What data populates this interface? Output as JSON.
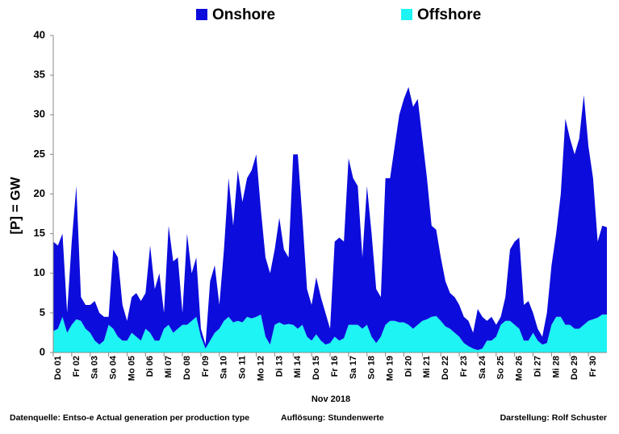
{
  "chart_data": {
    "type": "stacked_area",
    "y_label": "[P] = GW",
    "x_label": "Nov 2018",
    "footer": [
      "Datenquelle: Entso-e  Actual generation per production type",
      "Auflösung: Stundenwerte",
      "Darstellung:  Rolf Schuster"
    ],
    "legend": "top",
    "grid": false,
    "ylim": [
      0,
      40
    ],
    "yticks": [
      0,
      5,
      10,
      15,
      20,
      25,
      30,
      35,
      40
    ],
    "xlim": [
      0,
      30
    ],
    "xticks": [
      {
        "value": 0,
        "label": "Do 01"
      },
      {
        "value": 1,
        "label": "Fr 02"
      },
      {
        "value": 2,
        "label": "Sa 03"
      },
      {
        "value": 3,
        "label": "So 04"
      },
      {
        "value": 4,
        "label": "Mo 05"
      },
      {
        "value": 5,
        "label": "Di 06"
      },
      {
        "value": 6,
        "label": "Mi 07"
      },
      {
        "value": 7,
        "label": "Do 08"
      },
      {
        "value": 8,
        "label": "Fr 09"
      },
      {
        "value": 9,
        "label": "Sa 10"
      },
      {
        "value": 10,
        "label": "So 11"
      },
      {
        "value": 11,
        "label": "Mo 12"
      },
      {
        "value": 12,
        "label": "Di 13"
      },
      {
        "value": 13,
        "label": "Mi 14"
      },
      {
        "value": 14,
        "label": "Do 15"
      },
      {
        "value": 15,
        "label": "Fr 16"
      },
      {
        "value": 16,
        "label": "Sa 17"
      },
      {
        "value": 17,
        "label": "So 18"
      },
      {
        "value": 18,
        "label": "Mo 19"
      },
      {
        "value": 19,
        "label": "Di 20"
      },
      {
        "value": 20,
        "label": "Mi 21"
      },
      {
        "value": 21,
        "label": "Do 22"
      },
      {
        "value": 22,
        "label": "Fr 23"
      },
      {
        "value": 23,
        "label": "Sa 24"
      },
      {
        "value": 24,
        "label": "So 25"
      },
      {
        "value": 25,
        "label": "Mo 26"
      },
      {
        "value": 26,
        "label": "Di 27"
      },
      {
        "value": 27,
        "label": "Mi 28"
      },
      {
        "value": 28,
        "label": "Do 29"
      },
      {
        "value": 29,
        "label": "Fr 30"
      }
    ],
    "x": [
      0,
      0.25,
      0.5,
      0.75,
      1,
      1.25,
      1.5,
      1.75,
      2,
      2.25,
      2.5,
      2.75,
      3,
      3.25,
      3.5,
      3.75,
      4,
      4.25,
      4.5,
      4.75,
      5,
      5.25,
      5.5,
      5.75,
      6,
      6.25,
      6.5,
      6.75,
      7,
      7.25,
      7.5,
      7.75,
      8,
      8.25,
      8.5,
      8.75,
      9,
      9.25,
      9.5,
      9.75,
      10,
      10.25,
      10.5,
      10.75,
      11,
      11.25,
      11.5,
      11.75,
      12,
      12.25,
      12.5,
      12.75,
      13,
      13.25,
      13.5,
      13.75,
      14,
      14.25,
      14.5,
      14.75,
      15,
      15.25,
      15.5,
      15.75,
      16,
      16.25,
      16.5,
      16.75,
      17,
      17.25,
      17.5,
      17.75,
      18,
      18.25,
      18.5,
      18.75,
      19,
      19.25,
      19.5,
      19.75,
      20,
      20.25,
      20.5,
      20.75,
      21,
      21.25,
      21.5,
      21.75,
      22,
      22.25,
      22.5,
      22.75,
      23,
      23.25,
      23.5,
      23.75,
      24,
      24.25,
      24.5,
      24.75,
      25,
      25.25,
      25.5,
      25.75,
      26,
      26.25,
      26.5,
      26.75,
      27,
      27.25,
      27.5,
      27.75,
      28,
      28.25,
      28.5,
      28.75,
      29,
      29.25,
      29.5,
      29.75,
      30
    ],
    "series": [
      {
        "name": "Onshore",
        "color": "#0c0cdc",
        "values": [
          11.3,
          10.5,
          10.5,
          2.5,
          10.5,
          16.8,
          3,
          3,
          3.5,
          5,
          4,
          3,
          1,
          10,
          10,
          4.5,
          2.5,
          4.5,
          5.5,
          5,
          4.5,
          11,
          6.5,
          8.5,
          2,
          12.5,
          9,
          9,
          1.5,
          11.5,
          6,
          7.5,
          1,
          0.5,
          7.5,
          8.5,
          3,
          9,
          17.5,
          12.2,
          19,
          15.2,
          17.5,
          18.7,
          20.5,
          13.2,
          10,
          9,
          9.5,
          13.2,
          9.5,
          8.4,
          21.5,
          22,
          13.5,
          6,
          4.5,
          7.2,
          5.5,
          4,
          1.8,
          12,
          13,
          12.2,
          21,
          18.5,
          17.5,
          9,
          17.5,
          13,
          6.8,
          5,
          18.5,
          18,
          22,
          26.2,
          28.2,
          30,
          28,
          28.5,
          23,
          17.8,
          11.5,
          10.9,
          8,
          5.7,
          4.5,
          4.5,
          4,
          3.3,
          3.2,
          2,
          5.2,
          4,
          2.5,
          3,
          1.5,
          1,
          3,
          9,
          10.5,
          11.5,
          4.5,
          5,
          2.5,
          1.5,
          1,
          3.8,
          7.5,
          10.5,
          15.5,
          26,
          23.5,
          22,
          24,
          29,
          22,
          17.8,
          9.6,
          11.2,
          11
        ]
      },
      {
        "name": "Offshore",
        "color": "#1ef4f4",
        "values": [
          2.7,
          3,
          4.5,
          2.5,
          3.5,
          4.2,
          4,
          3,
          2.5,
          1.5,
          1,
          1.5,
          3.5,
          3,
          2,
          1.5,
          1.5,
          2.5,
          2,
          1.5,
          3,
          2.5,
          1.5,
          1.5,
          3,
          3.5,
          2.5,
          3,
          3.5,
          3.5,
          4,
          4.5,
          2,
          0.5,
          1.5,
          2.5,
          3,
          4,
          4.5,
          3.8,
          4,
          3.8,
          4.5,
          4.3,
          4.5,
          4.8,
          2,
          1,
          3.5,
          3.8,
          3.5,
          3.6,
          3.5,
          3,
          3.5,
          2,
          1.5,
          2.3,
          1.5,
          1,
          1.2,
          2,
          1.5,
          1.8,
          3.5,
          3.5,
          3.5,
          3,
          3.5,
          2,
          1.2,
          2,
          3.5,
          4,
          4,
          3.8,
          3.8,
          3.5,
          3,
          3.5,
          4,
          4.2,
          4.5,
          4.6,
          4,
          3.3,
          3,
          2.5,
          2,
          1.2,
          0.8,
          0.5,
          0.3,
          0.5,
          1.5,
          1.5,
          2,
          3.5,
          4,
          4,
          3.5,
          3,
          1.5,
          1.5,
          2.5,
          1.5,
          1,
          1.2,
          3.5,
          4.5,
          4.5,
          3.5,
          3.5,
          3,
          3,
          3.5,
          4,
          4.2,
          4.4,
          4.8,
          4.8
        ]
      }
    ]
  }
}
